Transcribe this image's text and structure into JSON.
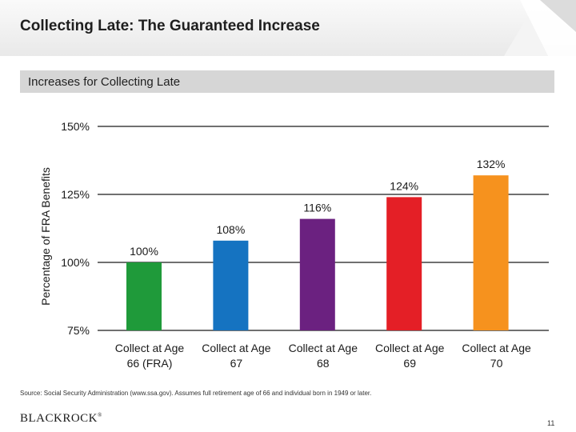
{
  "slide": {
    "title": "Collecting Late: The Guaranteed Increase",
    "subtitle": "Increases for Collecting Late",
    "source": "Source: Social Security Administration (www.ssa.gov). Assumes full retirement age of 66 and individual born in 1949 or later.",
    "logo_text": "BLACKROCK",
    "logo_mark": "®",
    "page_number": "11"
  },
  "chart_data": {
    "type": "bar",
    "title": "",
    "xlabel": "",
    "ylabel": "Percentage of FRA Benefits",
    "ylim": [
      75,
      150
    ],
    "yticks": [
      {
        "value": 150,
        "label": "150%"
      },
      {
        "value": 125,
        "label": "125%"
      },
      {
        "value": 100,
        "label": "100%"
      },
      {
        "value": 75,
        "label": "75%"
      }
    ],
    "grid": true,
    "categories": [
      [
        "Collect at Age",
        "66 (FRA)"
      ],
      [
        "Collect at Age",
        "67"
      ],
      [
        "Collect at Age",
        "68"
      ],
      [
        "Collect at Age",
        "69"
      ],
      [
        "Collect at Age",
        "70"
      ]
    ],
    "values": [
      100,
      108,
      116,
      124,
      132
    ],
    "data_labels": [
      "100%",
      "108%",
      "116%",
      "124%",
      "132%"
    ],
    "colors": [
      "#1f9a3a",
      "#1573c1",
      "#6b2180",
      "#e41f26",
      "#f6921e"
    ]
  }
}
